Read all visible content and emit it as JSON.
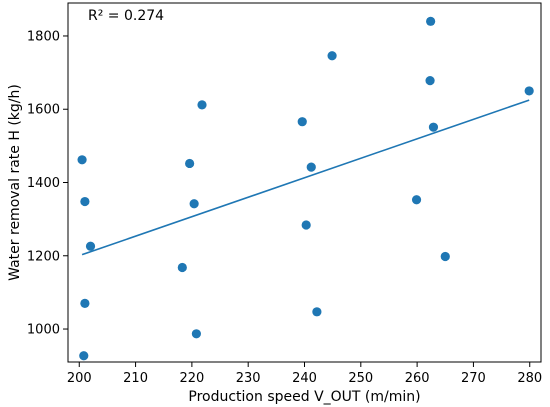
{
  "chart_data": {
    "type": "scatter",
    "xlabel": "Production speed V_OUT (m/min)",
    "ylabel": "Water removal rate H (kg/h)",
    "annotation": "R² = 0.274",
    "xlim": [
      198,
      282
    ],
    "ylim": [
      910,
      1890
    ],
    "x_ticks": [
      200,
      210,
      220,
      230,
      240,
      250,
      260,
      270,
      280
    ],
    "y_ticks": [
      1000,
      1200,
      1400,
      1600,
      1800
    ],
    "grid": false,
    "colors": {
      "points": "#1f77b4",
      "fit_line": "#1f77b4"
    },
    "points": [
      {
        "x": 200.5,
        "y": 1462
      },
      {
        "x": 201.0,
        "y": 1348
      },
      {
        "x": 202.0,
        "y": 1226
      },
      {
        "x": 201.0,
        "y": 1070
      },
      {
        "x": 200.8,
        "y": 927
      },
      {
        "x": 218.3,
        "y": 1168
      },
      {
        "x": 219.6,
        "y": 1452
      },
      {
        "x": 220.4,
        "y": 1342
      },
      {
        "x": 220.8,
        "y": 987
      },
      {
        "x": 221.8,
        "y": 1612
      },
      {
        "x": 239.6,
        "y": 1566
      },
      {
        "x": 240.3,
        "y": 1284
      },
      {
        "x": 241.2,
        "y": 1442
      },
      {
        "x": 242.2,
        "y": 1047
      },
      {
        "x": 244.9,
        "y": 1746
      },
      {
        "x": 259.9,
        "y": 1353
      },
      {
        "x": 262.3,
        "y": 1678
      },
      {
        "x": 262.4,
        "y": 1840
      },
      {
        "x": 262.9,
        "y": 1551
      },
      {
        "x": 265.0,
        "y": 1198
      },
      {
        "x": 279.9,
        "y": 1650
      }
    ],
    "fit_line": {
      "x": [
        200.5,
        279.9
      ],
      "y": [
        1203,
        1625
      ]
    }
  }
}
